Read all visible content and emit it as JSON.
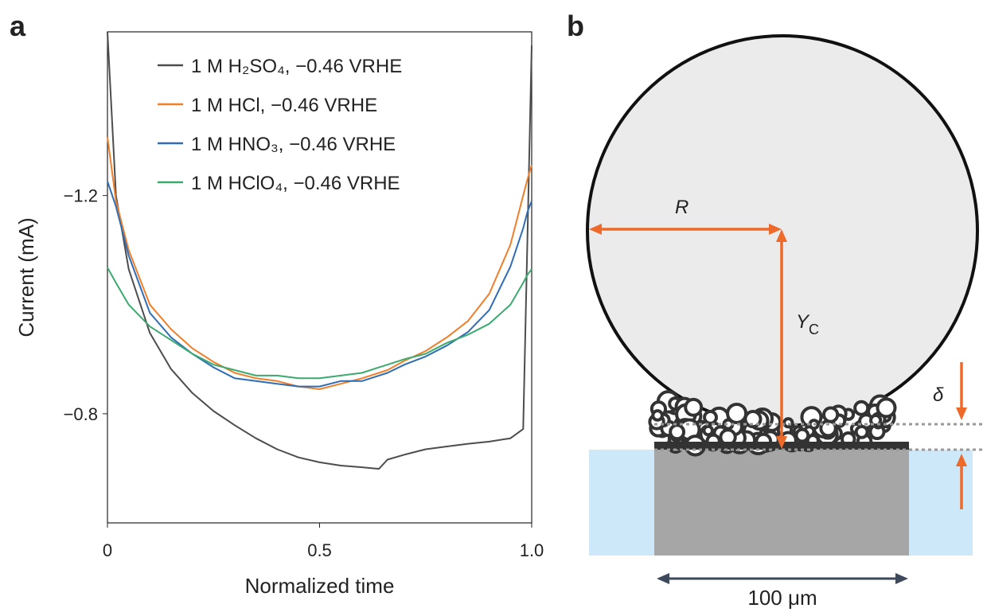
{
  "panel_labels": [
    "a",
    "b"
  ],
  "chart_data": {
    "type": "line",
    "ylabel": "Current (mA)",
    "xlabel": "Normalized time",
    "xlim": [
      0,
      1
    ],
    "xticks": [
      0,
      0.5,
      {
        "value": 1,
        "label": "1.0"
      }
    ],
    "ylim": [
      -0.6,
      -1.5
    ],
    "yticks": [
      {
        "value": -1.2,
        "label": "−1.2"
      },
      {
        "value": -0.8,
        "label": "−0.8"
      }
    ],
    "grid": false,
    "legend": "upper right",
    "x": [
      0,
      0.02,
      0.05,
      0.1,
      0.15,
      0.2,
      0.25,
      0.3,
      0.35,
      0.4,
      0.45,
      0.5,
      0.55,
      0.6,
      0.64,
      0.66,
      0.7,
      0.75,
      0.8,
      0.85,
      0.9,
      0.95,
      0.98,
      0.99,
      1.0
    ],
    "series": [
      {
        "name": "1 M H₂SO₄, −0.46 VRHE",
        "color": "#4d4d4d",
        "values": [
          -1.5,
          -1.2,
          -1.065,
          -0.948,
          -0.882,
          -0.838,
          -0.805,
          -0.779,
          -0.755,
          -0.735,
          -0.72,
          -0.711,
          -0.705,
          -0.702,
          -0.699,
          -0.716,
          -0.725,
          -0.735,
          -0.74,
          -0.745,
          -0.749,
          -0.755,
          -0.772,
          -1.124,
          -1.475
        ]
      },
      {
        "name": "1 M HCl, −0.46 VRHE",
        "color": "#f07f2a",
        "values": [
          -1.307,
          -1.19,
          -1.1,
          -1.0,
          -0.955,
          -0.92,
          -0.895,
          -0.875,
          -0.865,
          -0.86,
          -0.85,
          -0.845,
          -0.855,
          -0.865,
          -0.875,
          -0.88,
          -0.897,
          -0.915,
          -0.94,
          -0.97,
          -1.02,
          -1.11,
          -1.2,
          -1.23,
          -1.256
        ]
      },
      {
        "name": "1 M HNO₃, −0.46 VRHE",
        "color": "#2f6db5",
        "values": [
          -1.226,
          -1.18,
          -1.09,
          -0.985,
          -0.94,
          -0.91,
          -0.885,
          -0.865,
          -0.86,
          -0.855,
          -0.85,
          -0.85,
          -0.86,
          -0.86,
          -0.87,
          -0.875,
          -0.89,
          -0.905,
          -0.925,
          -0.95,
          -0.99,
          -1.07,
          -1.14,
          -1.17,
          -1.19
        ]
      },
      {
        "name": "1 M HClO₄, −0.46 VRHE",
        "color": "#3aaa6e",
        "values": [
          -1.068,
          -1.04,
          -1.0,
          -0.96,
          -0.935,
          -0.91,
          -0.89,
          -0.88,
          -0.87,
          -0.87,
          -0.865,
          -0.865,
          -0.87,
          -0.875,
          -0.885,
          -0.89,
          -0.9,
          -0.91,
          -0.93,
          -0.945,
          -0.965,
          -1.0,
          -1.04,
          -1.055,
          -1.065
        ]
      }
    ]
  },
  "diagram": {
    "radius_label": "R",
    "height_label": "Y",
    "height_label_sub": "C",
    "gap_label": "δ",
    "scale_label": "100 μm"
  }
}
